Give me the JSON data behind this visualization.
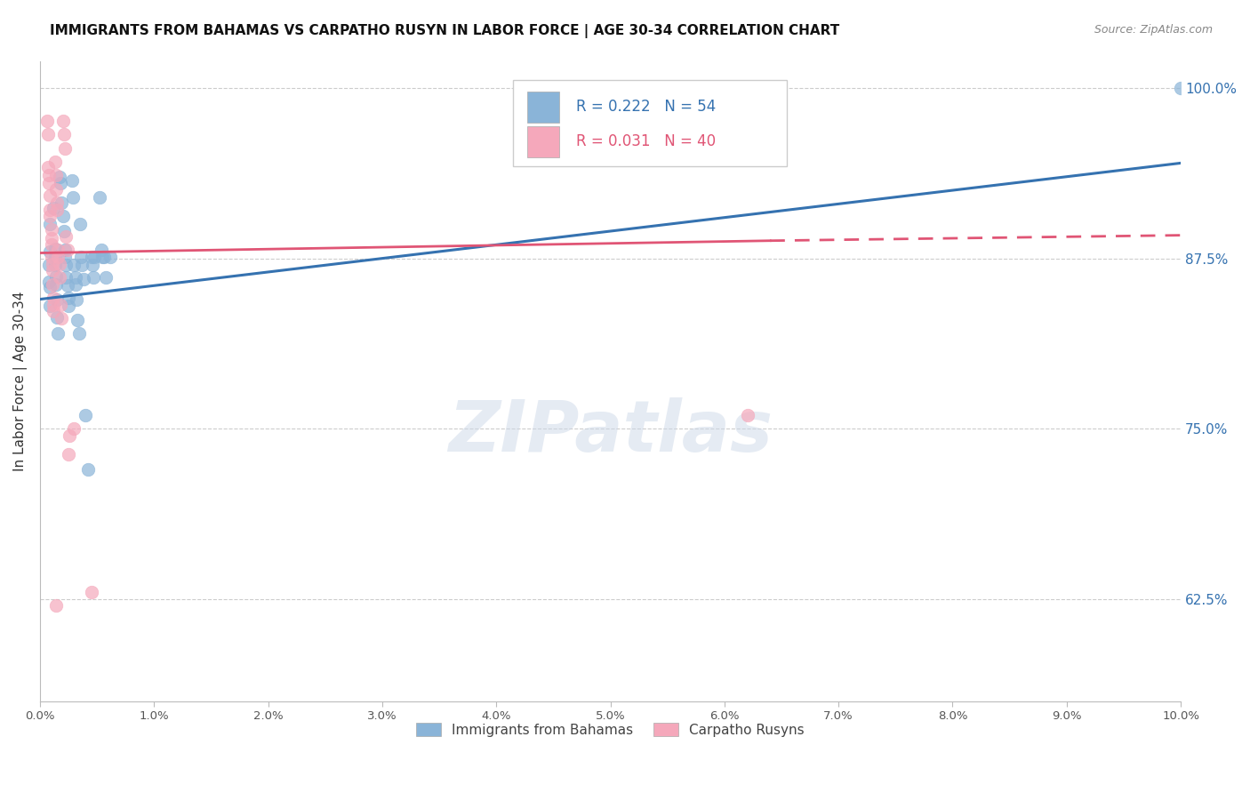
{
  "title": "IMMIGRANTS FROM BAHAMAS VS CARPATHO RUSYN IN LABOR FORCE | AGE 30-34 CORRELATION CHART",
  "source": "Source: ZipAtlas.com",
  "ylabel": "In Labor Force | Age 30-34",
  "ylabel_ticks": [
    "100.0%",
    "87.5%",
    "75.0%",
    "62.5%"
  ],
  "ylabel_values": [
    1.0,
    0.875,
    0.75,
    0.625
  ],
  "xlim": [
    0.0,
    0.1
  ],
  "ylim": [
    0.55,
    1.02
  ],
  "legend_blue_r": "0.222",
  "legend_blue_n": "54",
  "legend_pink_r": "0.031",
  "legend_pink_n": "40",
  "blue_color": "#8ab4d8",
  "pink_color": "#f5a8bb",
  "blue_line_color": "#3572b0",
  "pink_line_color": "#e05575",
  "watermark": "ZIPatlas",
  "blue_line": [
    0.0,
    0.1,
    0.845,
    0.945
  ],
  "pink_line_solid": [
    0.0,
    0.064,
    0.879,
    0.888
  ],
  "pink_line_dash": [
    0.064,
    0.1,
    0.888,
    0.892
  ],
  "blue_scatter": [
    [
      0.0008,
      0.87
    ],
    [
      0.0008,
      0.858
    ],
    [
      0.0009,
      0.9
    ],
    [
      0.0009,
      0.88
    ],
    [
      0.0009,
      0.854
    ],
    [
      0.0009,
      0.84
    ],
    [
      0.0012,
      0.912
    ],
    [
      0.0013,
      0.882
    ],
    [
      0.0013,
      0.876
    ],
    [
      0.0013,
      0.87
    ],
    [
      0.0014,
      0.862
    ],
    [
      0.0014,
      0.856
    ],
    [
      0.0015,
      0.845
    ],
    [
      0.0015,
      0.832
    ],
    [
      0.0016,
      0.82
    ],
    [
      0.0017,
      0.935
    ],
    [
      0.0018,
      0.93
    ],
    [
      0.0019,
      0.916
    ],
    [
      0.002,
      0.906
    ],
    [
      0.0021,
      0.895
    ],
    [
      0.0022,
      0.881
    ],
    [
      0.0022,
      0.876
    ],
    [
      0.0023,
      0.87
    ],
    [
      0.0023,
      0.861
    ],
    [
      0.0024,
      0.855
    ],
    [
      0.0025,
      0.846
    ],
    [
      0.0025,
      0.84
    ],
    [
      0.0028,
      0.932
    ],
    [
      0.0029,
      0.92
    ],
    [
      0.003,
      0.87
    ],
    [
      0.0031,
      0.861
    ],
    [
      0.0031,
      0.856
    ],
    [
      0.0032,
      0.845
    ],
    [
      0.0033,
      0.83
    ],
    [
      0.0034,
      0.82
    ],
    [
      0.0035,
      0.9
    ],
    [
      0.0036,
      0.876
    ],
    [
      0.0037,
      0.87
    ],
    [
      0.0038,
      0.86
    ],
    [
      0.004,
      0.76
    ],
    [
      0.0042,
      0.72
    ],
    [
      0.0045,
      0.876
    ],
    [
      0.0046,
      0.87
    ],
    [
      0.0047,
      0.861
    ],
    [
      0.0048,
      0.876
    ],
    [
      0.0052,
      0.92
    ],
    [
      0.0054,
      0.881
    ],
    [
      0.0055,
      0.876
    ],
    [
      0.0056,
      0.876
    ],
    [
      0.0058,
      0.861
    ],
    [
      0.0062,
      0.876
    ],
    [
      0.043,
      1.0
    ],
    [
      0.062,
      1.0
    ],
    [
      0.1,
      1.0
    ]
  ],
  "pink_scatter": [
    [
      0.0006,
      0.976
    ],
    [
      0.0007,
      0.966
    ],
    [
      0.0007,
      0.942
    ],
    [
      0.0008,
      0.936
    ],
    [
      0.0008,
      0.93
    ],
    [
      0.0009,
      0.921
    ],
    [
      0.0009,
      0.911
    ],
    [
      0.0009,
      0.906
    ],
    [
      0.001,
      0.896
    ],
    [
      0.001,
      0.89
    ],
    [
      0.001,
      0.885
    ],
    [
      0.001,
      0.876
    ],
    [
      0.0011,
      0.871
    ],
    [
      0.0011,
      0.866
    ],
    [
      0.0011,
      0.856
    ],
    [
      0.0012,
      0.846
    ],
    [
      0.0012,
      0.841
    ],
    [
      0.0012,
      0.836
    ],
    [
      0.0013,
      0.946
    ],
    [
      0.0014,
      0.936
    ],
    [
      0.0014,
      0.926
    ],
    [
      0.0015,
      0.916
    ],
    [
      0.0015,
      0.911
    ],
    [
      0.0016,
      0.881
    ],
    [
      0.0016,
      0.876
    ],
    [
      0.0017,
      0.871
    ],
    [
      0.0017,
      0.861
    ],
    [
      0.0018,
      0.841
    ],
    [
      0.0019,
      0.831
    ],
    [
      0.002,
      0.976
    ],
    [
      0.0021,
      0.966
    ],
    [
      0.0022,
      0.956
    ],
    [
      0.0023,
      0.891
    ],
    [
      0.0024,
      0.881
    ],
    [
      0.0025,
      0.731
    ],
    [
      0.0026,
      0.745
    ],
    [
      0.003,
      0.75
    ],
    [
      0.0045,
      0.63
    ],
    [
      0.062,
      0.76
    ],
    [
      0.0014,
      0.62
    ]
  ]
}
